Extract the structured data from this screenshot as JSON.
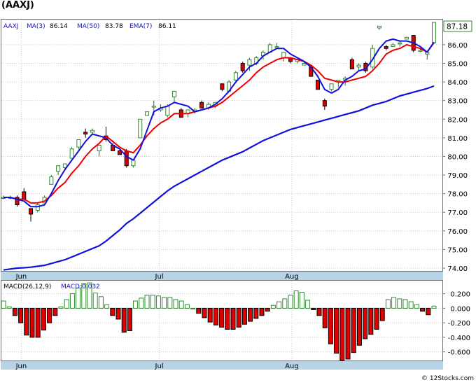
{
  "colors": {
    "up": "#2e8b2e",
    "down": "#e00000",
    "ma_short": "#1010dd",
    "ma_long": "#1010dd",
    "ema": "#ee0000",
    "axis_band": "#b8d4e4",
    "macd_hist": "#2e8b2e",
    "macd_hist_neg": "#e00000",
    "label_blue": "#1010cc"
  },
  "chart_data": [
    {
      "type": "candlestick",
      "title": "(AAXJ)",
      "ticker": "AAXJ",
      "legend": [
        {
          "text": "MA(3)",
          "value": "86.14"
        },
        {
          "text": "MA(50)",
          "value": "83.78"
        },
        {
          "text": "EMA(7)",
          "value": "86.11"
        }
      ],
      "y_ticks": [
        "74.00",
        "75.00",
        "76.00",
        "77.00",
        "78.00",
        "79.00",
        "80.00",
        "81.00",
        "82.00",
        "83.00",
        "84.00",
        "85.00",
        "86.00"
      ],
      "ylim": [
        73.85,
        87.35
      ],
      "x_labels": [
        {
          "label": "Jun",
          "index": 2.6
        },
        {
          "label": "Jul",
          "index": 22.8
        },
        {
          "label": "Aug",
          "index": 42.2
        }
      ],
      "last_price": "87.18",
      "candles": [
        [
          77.8,
          77.9,
          77.7,
          77.8
        ],
        [
          77.8,
          77.9,
          77.7,
          77.8
        ],
        [
          77.8,
          77.9,
          77.3,
          77.4
        ],
        [
          78.1,
          78.3,
          77.7,
          77.7
        ],
        [
          77.2,
          77.2,
          76.5,
          76.9
        ],
        [
          77.1,
          77.5,
          77.0,
          77.4
        ],
        [
          77.5,
          77.9,
          77.5,
          77.8
        ],
        [
          78.5,
          79.0,
          78.5,
          78.9
        ],
        [
          79.2,
          79.5,
          79.0,
          79.5
        ],
        [
          79.4,
          79.6,
          79.3,
          79.6
        ],
        [
          79.9,
          80.5,
          79.9,
          80.4
        ],
        [
          80.5,
          80.9,
          80.4,
          80.9
        ],
        [
          81.3,
          81.5,
          81.0,
          81.2
        ],
        [
          81.3,
          81.5,
          81.2,
          81.4
        ],
        [
          80.3,
          80.6,
          80.0,
          80.6
        ],
        [
          81.1,
          81.6,
          80.8,
          80.9
        ],
        [
          80.6,
          80.7,
          80.3,
          80.3
        ],
        [
          80.3,
          80.4,
          80.1,
          80.1
        ],
        [
          80.3,
          80.4,
          79.4,
          79.5
        ],
        [
          79.5,
          79.8,
          79.4,
          79.8
        ],
        [
          81.0,
          82.0,
          81.0,
          82.0
        ],
        [
          82.2,
          82.4,
          82.2,
          82.4
        ],
        [
          82.7,
          83.0,
          82.2,
          82.7
        ],
        [
          82.5,
          82.8,
          82.4,
          82.6
        ],
        [
          82.2,
          82.8,
          82.1,
          82.7
        ],
        [
          83.2,
          83.5,
          82.9,
          83.5
        ],
        [
          82.5,
          82.6,
          82.1,
          82.1
        ],
        [
          82.3,
          82.5,
          82.1,
          82.5
        ],
        [
          82.4,
          82.6,
          82.3,
          82.5
        ],
        [
          82.9,
          83.0,
          82.6,
          82.6
        ],
        [
          82.6,
          82.9,
          82.5,
          82.8
        ],
        [
          82.7,
          82.9,
          82.6,
          82.9
        ],
        [
          83.9,
          83.9,
          83.5,
          83.6
        ],
        [
          83.5,
          84.1,
          83.5,
          84.0
        ],
        [
          84.1,
          84.6,
          84.0,
          84.5
        ],
        [
          85.0,
          85.1,
          84.5,
          84.6
        ],
        [
          84.9,
          85.3,
          84.6,
          85.2
        ],
        [
          85.0,
          85.4,
          84.9,
          85.3
        ],
        [
          85.4,
          85.7,
          85.2,
          85.6
        ],
        [
          85.6,
          86.1,
          85.6,
          86.0
        ],
        [
          85.9,
          86.1,
          85.8,
          85.9
        ],
        [
          85.3,
          85.6,
          85.1,
          85.6
        ],
        [
          85.3,
          85.3,
          85.0,
          85.1
        ],
        [
          85.1,
          85.3,
          85.0,
          85.2
        ],
        [
          84.9,
          85.1,
          84.9,
          85.0
        ],
        [
          84.8,
          84.8,
          84.3,
          84.3
        ],
        [
          84.1,
          84.1,
          83.6,
          83.6
        ],
        [
          83.0,
          83.1,
          82.5,
          82.7
        ],
        [
          83.6,
          83.9,
          83.5,
          83.9
        ],
        [
          84.0,
          84.1,
          83.7,
          84.1
        ],
        [
          84.1,
          84.3,
          83.8,
          84.2
        ],
        [
          85.2,
          85.3,
          84.7,
          84.7
        ],
        [
          84.8,
          85.0,
          84.6,
          84.9
        ],
        [
          85.0,
          85.1,
          84.5,
          84.6
        ],
        [
          84.8,
          86.0,
          84.7,
          85.8
        ],
        [
          86.9,
          87.0,
          86.8,
          87.0
        ],
        [
          85.9,
          86.0,
          85.7,
          85.8
        ],
        [
          85.9,
          86.1,
          85.9,
          86.0
        ],
        [
          86.1,
          86.2,
          85.9,
          86.1
        ],
        [
          86.3,
          86.4,
          86.3,
          86.4
        ],
        [
          86.5,
          86.5,
          85.6,
          85.7
        ],
        [
          85.7,
          85.8,
          85.6,
          85.7
        ],
        [
          85.5,
          85.6,
          85.2,
          85.6
        ],
        [
          86.1,
          87.2,
          86.1,
          87.2
        ]
      ],
      "ma3": [
        77.8,
        77.8,
        77.7,
        77.6,
        77.3,
        77.3,
        77.4,
        78.0,
        78.7,
        79.3,
        79.8,
        80.3,
        80.8,
        81.2,
        81.1,
        81.0,
        80.6,
        80.4,
        80.0,
        79.8,
        80.4,
        81.4,
        82.4,
        82.6,
        82.7,
        82.9,
        82.8,
        82.7,
        82.4,
        82.5,
        82.6,
        82.8,
        83.1,
        83.5,
        84.0,
        84.4,
        84.8,
        85.0,
        85.4,
        85.6,
        85.8,
        85.8,
        85.5,
        85.3,
        85.1,
        84.8,
        84.3,
        83.6,
        83.4,
        83.6,
        84.1,
        84.3,
        84.6,
        84.7,
        85.2,
        85.8,
        86.2,
        86.3,
        86.2,
        86.2,
        86.1,
        85.9,
        85.6,
        86.14
      ],
      "ema7": [
        77.8,
        77.8,
        77.7,
        77.7,
        77.5,
        77.5,
        77.6,
        77.9,
        78.3,
        78.6,
        79.1,
        79.5,
        80.0,
        80.4,
        80.7,
        81.1,
        80.8,
        80.5,
        80.3,
        80.2,
        80.6,
        81.1,
        81.5,
        81.8,
        82.0,
        82.3,
        82.3,
        82.3,
        82.4,
        82.5,
        82.6,
        82.7,
        82.9,
        83.2,
        83.5,
        83.8,
        84.1,
        84.5,
        84.8,
        85.0,
        85.2,
        85.3,
        85.3,
        85.2,
        85.1,
        84.9,
        84.6,
        84.2,
        84.1,
        84.0,
        84.0,
        84.1,
        84.2,
        84.3,
        84.6,
        85.0,
        85.5,
        85.7,
        85.8,
        86.0,
        85.9,
        85.8,
        85.6,
        86.11
      ],
      "ma50": [
        73.9,
        73.95,
        74.0,
        74.02,
        74.05,
        74.1,
        74.15,
        74.25,
        74.35,
        74.45,
        74.6,
        74.75,
        74.9,
        75.05,
        75.2,
        75.45,
        75.75,
        76.05,
        76.4,
        76.65,
        76.95,
        77.25,
        77.55,
        77.85,
        78.15,
        78.4,
        78.6,
        78.8,
        79.0,
        79.2,
        79.4,
        79.6,
        79.8,
        79.95,
        80.1,
        80.25,
        80.45,
        80.65,
        80.85,
        81.0,
        81.15,
        81.3,
        81.45,
        81.55,
        81.65,
        81.75,
        81.85,
        81.95,
        82.05,
        82.15,
        82.25,
        82.35,
        82.45,
        82.6,
        82.75,
        82.85,
        82.95,
        83.1,
        83.25,
        83.35,
        83.45,
        83.55,
        83.65,
        83.78
      ]
    },
    {
      "type": "bar",
      "title": "MACD(26,12,9)",
      "label": "MACD:0.032",
      "y_ticks": [
        "0.200",
        "0.000",
        "-0.200",
        "-0.400",
        "-0.600"
      ],
      "ylim": [
        -0.72,
        0.38
      ],
      "x_labels": [
        {
          "label": "Jun",
          "index": 2.6
        },
        {
          "label": "Jul",
          "index": 22.8
        },
        {
          "label": "Aug",
          "index": 42.2
        }
      ],
      "values": [
        0.1,
        0.02,
        -0.1,
        -0.2,
        -0.37,
        -0.4,
        -0.4,
        -0.3,
        -0.2,
        -0.1,
        0.02,
        0.12,
        0.2,
        0.28,
        0.34,
        0.35,
        0.21,
        0.16,
        0.05,
        -0.1,
        -0.15,
        -0.33,
        -0.31,
        0.1,
        0.14,
        0.18,
        0.18,
        0.17,
        0.15,
        0.15,
        0.12,
        0.1,
        0.05,
        0.0,
        -0.07,
        -0.13,
        -0.19,
        -0.23,
        -0.26,
        -0.29,
        -0.29,
        -0.26,
        -0.22,
        -0.18,
        -0.14,
        -0.1,
        -0.04,
        0.04,
        0.09,
        0.13,
        0.18,
        0.24,
        0.22,
        0.11,
        -0.02,
        -0.1,
        -0.27,
        -0.49,
        -0.62,
        -0.72,
        -0.7,
        -0.61,
        -0.51,
        -0.42,
        -0.36,
        -0.29,
        -0.17,
        0.12,
        0.15,
        0.13,
        0.12,
        0.09,
        0.05,
        -0.04,
        -0.09,
        0.03
      ]
    }
  ],
  "watermark": "© 12Stocks.com"
}
